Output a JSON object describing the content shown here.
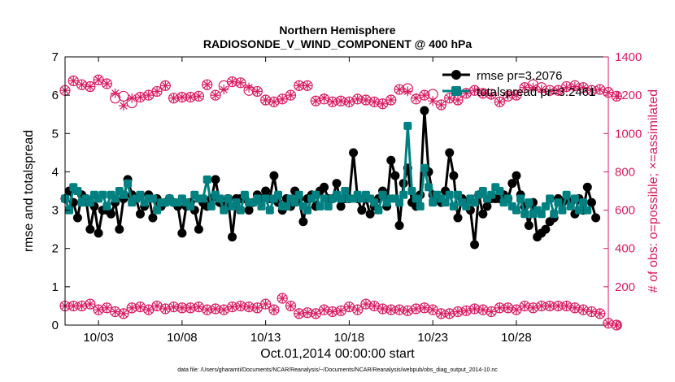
{
  "header": {
    "title_line1": "Northern Hemisphere",
    "title_line2": "RADIOSONDE_V_WIND_COMPONENT @ 400 hPa"
  },
  "footer": {
    "data_file": "data file: /Users/gharamti/Documents/NCAR/Reanalysis/~/Documents/NCAR/Reanalysis/webpub/obs_diag_output_2014-10.nc"
  },
  "chart_data": {
    "type": "line",
    "title": "Northern Hemisphere RADIOSONDE_V_WIND_COMPONENT @ 400 hPa",
    "xlabel": "Oct.01,2014 00:00:00 start",
    "ylabel_left": "rmse and totalspread",
    "ylabel_right": "# of obs: o=possible; ×=assimilated",
    "x_range": [
      1,
      33.5
    ],
    "ylim_left": [
      0,
      7
    ],
    "ylim_right": [
      0,
      1400
    ],
    "x_tick_positions": [
      3,
      8,
      13,
      18,
      23,
      28
    ],
    "x_tick_labels": [
      "10/03",
      "10/08",
      "10/13",
      "10/18",
      "10/23",
      "10/28"
    ],
    "y_left_ticks": [
      "0",
      "1",
      "2",
      "3",
      "4",
      "5",
      "6",
      "7"
    ],
    "y_right_ticks": [
      "0",
      "200",
      "400",
      "600",
      "800",
      "1000",
      "1200",
      "1400"
    ],
    "legend": {
      "position": "top-right",
      "entries": [
        "rmse pr=3.2076",
        "totalspread pr=3.2461"
      ]
    },
    "colors": {
      "rmse": "#000000",
      "totalspread": "#008080",
      "obs": "#d81b60"
    },
    "series": [
      {
        "name": "rmse",
        "axis": "left",
        "x_start": 1,
        "x_step": 0.25,
        "values": [
          3.3,
          3.5,
          3.2,
          2.8,
          3.4,
          3.3,
          2.5,
          3.1,
          2.4,
          3.0,
          3.0,
          2.9,
          3.2,
          2.5,
          3.3,
          3.8,
          3.4,
          3.3,
          2.9,
          3.1,
          3.4,
          2.8,
          3.3,
          3.1,
          3.2,
          3.3,
          3.2,
          3.1,
          2.4,
          3.1,
          3.2,
          3.0,
          2.5,
          3.2,
          3.1,
          3.3,
          3.8,
          3.2,
          3.1,
          3.3,
          2.3,
          3.3,
          3.3,
          3.3,
          3.0,
          3.2,
          3.4,
          3.3,
          3.5,
          3.3,
          3.9,
          3.2,
          3.0,
          3.3,
          3.1,
          3.5,
          3.3,
          2.7,
          3.3,
          3.4,
          3.1,
          3.5,
          3.6,
          3.3,
          3.3,
          3.7,
          3.1,
          3.3,
          3.3,
          4.5,
          3.3,
          3.0,
          3.3,
          2.9,
          3.1,
          3.3,
          3.5,
          3.1,
          4.3,
          3.9,
          2.6,
          3.7,
          4.1,
          3.2,
          3.1,
          3.4,
          5.6,
          4.0,
          3.4,
          3.3,
          3.2,
          3.5,
          4.5,
          3.9,
          2.8,
          3.3,
          3.2,
          3.0,
          2.1,
          3.4,
          2.9,
          3.1,
          3.3,
          3.3,
          3.3,
          3.4,
          3.3,
          3.7,
          3.9,
          3.4,
          3.1,
          2.6,
          3.2,
          2.3,
          2.4,
          2.5,
          2.7,
          2.8,
          3.3,
          3.2,
          3.3,
          3.2,
          2.9,
          3.3,
          3.0,
          3.6,
          3.2,
          2.8
        ]
      },
      {
        "name": "totalspread",
        "axis": "left",
        "x_start": 1,
        "x_step": 0.25,
        "values": [
          3.3,
          3.0,
          3.6,
          3.5,
          3.2,
          3.3,
          3.2,
          3.4,
          3.3,
          3.4,
          3.1,
          3.4,
          3.3,
          3.5,
          3.4,
          3.7,
          3.2,
          3.3,
          3.4,
          3.2,
          3.3,
          3.3,
          3.0,
          3.2,
          3.2,
          3.3,
          3.2,
          3.2,
          3.3,
          3.2,
          3.1,
          3.4,
          3.3,
          3.3,
          3.8,
          3.1,
          3.4,
          3.3,
          3.0,
          3.3,
          3.1,
          3.2,
          3.0,
          3.4,
          3.2,
          3.2,
          3.3,
          3.1,
          3.3,
          3.0,
          3.3,
          3.4,
          3.1,
          3.1,
          3.3,
          3.2,
          3.4,
          3.1,
          3.0,
          3.3,
          3.4,
          3.1,
          3.3,
          3.1,
          3.3,
          3.4,
          3.3,
          3.5,
          3.3,
          3.3,
          3.4,
          3.3,
          3.4,
          3.3,
          3.2,
          3.0,
          3.4,
          3.2,
          3.3,
          3.3,
          3.2,
          3.4,
          5.2,
          3.5,
          3.3,
          3.1,
          4.1,
          3.6,
          3.2,
          3.4,
          3.3,
          3.2,
          3.4,
          3.1,
          3.4,
          3.2,
          3.1,
          3.3,
          3.2,
          3.4,
          3.5,
          3.3,
          3.4,
          3.6,
          3.5,
          3.2,
          3.3,
          3.1,
          3.0,
          3.3,
          2.9,
          3.2,
          2.9,
          3.0,
          2.9,
          3.1,
          3.3,
          2.9,
          3.2,
          3.0,
          3.4,
          3.1,
          3.3,
          3.0,
          3.2,
          3.0
        ]
      },
      {
        "name": "obs possible (o)",
        "axis": "right",
        "x_start": 1,
        "x_step": 0.5,
        "values": [
          1225,
          1275,
          1255,
          1245,
          1280,
          1260,
          1185,
          1195,
          1160,
          1190,
          1200,
          1220,
          1250,
          1185,
          1190,
          1190,
          1195,
          1255,
          1200,
          1250,
          1270,
          1265,
          1225,
          1220,
          1175,
          1165,
          1180,
          1200,
          1250,
          1250,
          1170,
          1180,
          1165,
          1170,
          1165,
          1180,
          1175,
          1165,
          1155,
          1175,
          1230,
          1235,
          1180,
          1200,
          1205,
          1150,
          1185,
          1175,
          1210,
          1225,
          1210,
          1205,
          1165,
          1195,
          1200,
          1240,
          1255,
          1240,
          1225,
          1225,
          1245,
          1250,
          1240,
          1225,
          1230,
          1215,
          1195
        ]
      },
      {
        "name": "obs assimilated (×)",
        "axis": "right",
        "x_start": 1,
        "x_step": 0.5,
        "values": [
          1225,
          1275,
          1255,
          1245,
          1280,
          1260,
          1210,
          1145,
          1185,
          1190,
          1200,
          1220,
          1250,
          1185,
          1190,
          1190,
          1195,
          1255,
          1200,
          1230,
          1270,
          1265,
          1240,
          1220,
          1175,
          1165,
          1180,
          1200,
          1250,
          1250,
          1170,
          1185,
          1165,
          1170,
          1165,
          1180,
          1175,
          1165,
          1155,
          1175,
          1230,
          1220,
          1185,
          1200,
          1170,
          1150,
          1185,
          1175,
          1210,
          1225,
          1210,
          1200,
          1165,
          1200,
          1200,
          1240,
          1240,
          1230,
          1220,
          1225,
          1240,
          1245,
          1240,
          1225,
          1230,
          1215,
          1195
        ]
      },
      {
        "name": "obs possible low (o)",
        "axis": "right",
        "x_start": 1,
        "x_step": 0.5,
        "values": [
          100,
          100,
          100,
          110,
          80,
          90,
          70,
          60,
          90,
          95,
          80,
          100,
          85,
          95,
          90,
          90,
          95,
          80,
          85,
          80,
          95,
          100,
          95,
          90,
          110,
          80,
          140,
          100,
          60,
          65,
          60,
          80,
          70,
          75,
          95,
          80,
          110,
          100,
          85,
          80,
          80,
          75,
          85,
          90,
          80,
          60,
          60,
          70,
          75,
          85,
          80,
          70,
          90,
          90,
          80,
          100,
          90,
          100,
          100,
          100,
          100,
          90,
          80,
          70,
          60,
          10,
          0
        ]
      },
      {
        "name": "obs assimilated low (×)",
        "axis": "right",
        "x_start": 1,
        "x_step": 0.5,
        "values": [
          100,
          100,
          100,
          110,
          80,
          90,
          70,
          60,
          90,
          95,
          80,
          100,
          85,
          95,
          90,
          90,
          95,
          80,
          85,
          80,
          95,
          100,
          95,
          90,
          110,
          80,
          140,
          100,
          60,
          65,
          60,
          80,
          70,
          75,
          95,
          80,
          110,
          100,
          85,
          80,
          80,
          75,
          85,
          90,
          80,
          60,
          60,
          70,
          75,
          85,
          80,
          70,
          90,
          90,
          80,
          100,
          90,
          100,
          100,
          100,
          100,
          90,
          80,
          70,
          60,
          10,
          0
        ]
      }
    ]
  }
}
